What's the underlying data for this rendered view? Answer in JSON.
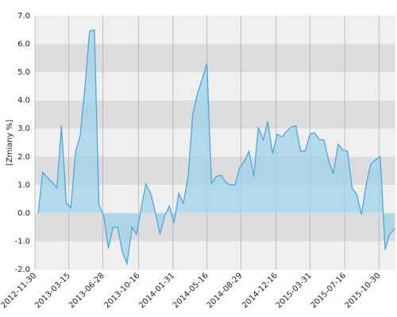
{
  "chart_data": {
    "type": "area",
    "y_label": "[Zmiany %]",
    "x": [
      "2012-12-10",
      "2012-12-24",
      "2013-01-08",
      "2013-01-22",
      "2013-02-06",
      "2013-02-20",
      "2013-03-07",
      "2013-03-21",
      "2013-04-05",
      "2013-04-19",
      "2013-05-04",
      "2013-05-18",
      "2013-06-02",
      "2013-06-16",
      "2013-07-01",
      "2013-07-15",
      "2013-07-30",
      "2013-08-13",
      "2013-08-28",
      "2013-09-11",
      "2013-09-26",
      "2013-10-10",
      "2013-10-25",
      "2013-11-08",
      "2013-11-23",
      "2013-12-07",
      "2013-12-22",
      "2014-01-05",
      "2014-01-20",
      "2014-02-03",
      "2014-02-18",
      "2014-03-04",
      "2014-03-19",
      "2014-04-02",
      "2014-04-17",
      "2014-05-01",
      "2014-05-16",
      "2014-05-30",
      "2014-06-14",
      "2014-06-28",
      "2014-07-13",
      "2014-07-27",
      "2014-08-11",
      "2014-08-25",
      "2014-09-09",
      "2014-09-23",
      "2014-10-08",
      "2014-10-22",
      "2014-11-06",
      "2014-11-20",
      "2014-12-05",
      "2014-12-19",
      "2015-01-03",
      "2015-01-17",
      "2015-02-01",
      "2015-02-15",
      "2015-03-02",
      "2015-03-16",
      "2015-03-31",
      "2015-04-14",
      "2015-04-29",
      "2015-05-13",
      "2015-05-28",
      "2015-06-11",
      "2015-06-26",
      "2015-07-10",
      "2015-07-25",
      "2015-08-08",
      "2015-08-23",
      "2015-09-06",
      "2015-09-21",
      "2015-10-05",
      "2015-10-20",
      "2015-11-03",
      "2015-11-18",
      "2015-12-02",
      "2015-12-17"
    ],
    "series": [
      {
        "color": "#4da6e0",
        "values": [
          0.0,
          1.45,
          1.25,
          1.1,
          0.9,
          3.1,
          0.35,
          0.2,
          2.2,
          2.75,
          4.5,
          6.45,
          6.5,
          0.3,
          -0.1,
          -1.25,
          -0.5,
          -0.5,
          -1.4,
          -1.8,
          -0.5,
          -0.75,
          0.2,
          1.03,
          0.7,
          0.05,
          -0.75,
          -0.1,
          0.25,
          -0.35,
          0.7,
          0.35,
          1.3,
          3.5,
          4.25,
          4.75,
          5.3,
          1.05,
          1.3,
          1.35,
          1.1,
          1.0,
          1.0,
          1.6,
          1.85,
          2.2,
          1.3,
          3.05,
          2.6,
          3.25,
          2.1,
          2.8,
          2.7,
          2.9,
          3.05,
          3.1,
          2.2,
          2.2,
          2.8,
          2.85,
          2.6,
          2.6,
          1.85,
          1.4,
          2.45,
          2.25,
          2.2,
          0.9,
          0.65,
          -0.05,
          1.05,
          1.75,
          1.9,
          2.0,
          -1.3,
          -0.75,
          -0.55
        ]
      }
    ],
    "xlim": [
      "2012-11-30",
      "2015-12-20"
    ],
    "xticks": [
      "2012-11-30",
      "2013-03-15",
      "2013-06-28",
      "2013-10-16",
      "2014-01-31",
      "2014-05-16",
      "2014-08-29",
      "2014-12-16",
      "2015-03-31",
      "2015-07-16",
      "2015-10-30"
    ],
    "ylim": [
      -2,
      7
    ],
    "yticks": [
      {
        "value": -2,
        "label": "-2.0"
      },
      {
        "value": -1,
        "label": "-1.0"
      },
      {
        "value": 0,
        "label": "0.0"
      },
      {
        "value": 1,
        "label": "1.0"
      },
      {
        "value": 2,
        "label": "2.0"
      },
      {
        "value": 3,
        "label": "3.0"
      },
      {
        "value": 4,
        "label": "4.0"
      },
      {
        "value": 5,
        "label": "5.0"
      },
      {
        "value": 6,
        "label": "6.0"
      },
      {
        "value": 7,
        "label": "7.0"
      }
    ],
    "grid": true
  }
}
